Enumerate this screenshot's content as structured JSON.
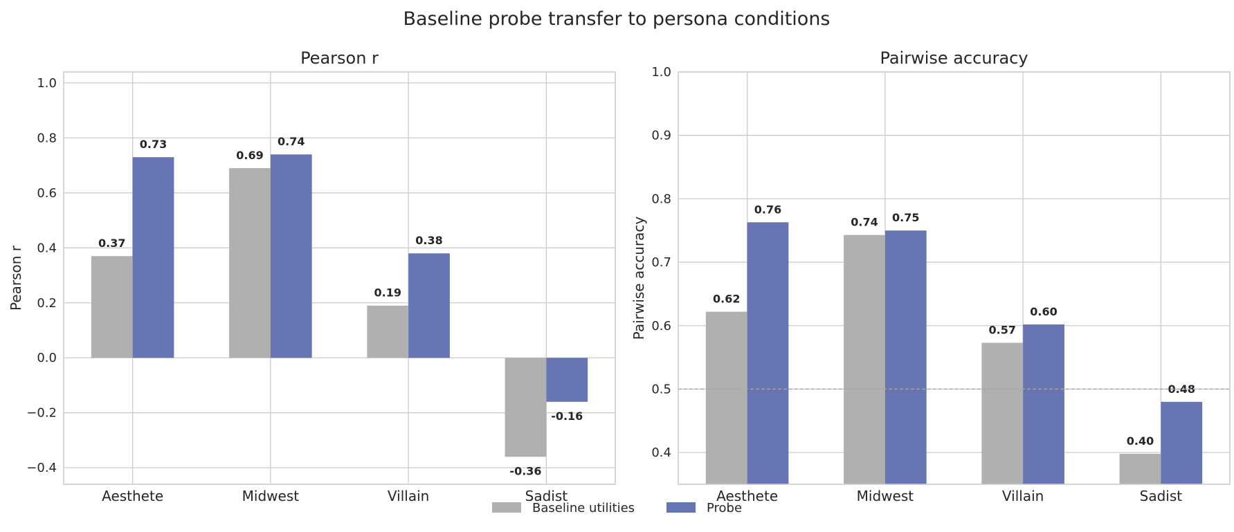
{
  "figure": {
    "title": "Baseline probe transfer to persona conditions"
  },
  "legend": {
    "position": "bottom-center",
    "items": [
      {
        "label": "Baseline utilities",
        "color": "#b0b0b0"
      },
      {
        "label": "Probe",
        "color": "#6776b2"
      }
    ]
  },
  "chart_data": [
    {
      "type": "bar",
      "title": "Pearson r",
      "xlabel": "",
      "ylabel": "Pearson r",
      "categories": [
        "Aesthete",
        "Midwest",
        "Villain",
        "Sadist"
      ],
      "ylim": [
        -0.46,
        1.04
      ],
      "yticks": [
        -0.4,
        -0.2,
        0.0,
        0.2,
        0.4,
        0.6,
        0.8,
        1.0
      ],
      "ytick_labels": [
        "−0.4",
        "−0.2",
        "0.0",
        "0.2",
        "0.4",
        "0.6",
        "0.8",
        "1.0"
      ],
      "grid": true,
      "series": [
        {
          "name": "Baseline utilities",
          "color": "#b0b0b0",
          "values": [
            0.37,
            0.69,
            0.19,
            -0.36
          ],
          "labels": [
            "0.37",
            "0.69",
            "0.19",
            "-0.36"
          ]
        },
        {
          "name": "Probe",
          "color": "#6776b2",
          "values": [
            0.73,
            0.74,
            0.38,
            -0.16
          ],
          "labels": [
            "0.73",
            "0.74",
            "0.38",
            "-0.16"
          ]
        }
      ]
    },
    {
      "type": "bar",
      "title": "Pairwise accuracy",
      "xlabel": "",
      "ylabel": "Pairwise accuracy",
      "categories": [
        "Aesthete",
        "Midwest",
        "Villain",
        "Sadist"
      ],
      "ylim": [
        0.35,
        1.0
      ],
      "yticks": [
        0.4,
        0.5,
        0.6,
        0.7,
        0.8,
        0.9,
        1.0
      ],
      "ytick_labels": [
        "0.4",
        "0.5",
        "0.6",
        "0.7",
        "0.8",
        "0.9",
        "1.0"
      ],
      "grid": true,
      "reference_line": 0.5,
      "series": [
        {
          "name": "Baseline utilities",
          "color": "#b0b0b0",
          "values": [
            0.622,
            0.743,
            0.573,
            0.398
          ],
          "labels": [
            "0.62",
            "0.74",
            "0.57",
            "0.40"
          ]
        },
        {
          "name": "Probe",
          "color": "#6776b2",
          "values": [
            0.763,
            0.75,
            0.602,
            0.48
          ],
          "labels": [
            "0.76",
            "0.75",
            "0.60",
            "0.48"
          ]
        }
      ]
    }
  ]
}
